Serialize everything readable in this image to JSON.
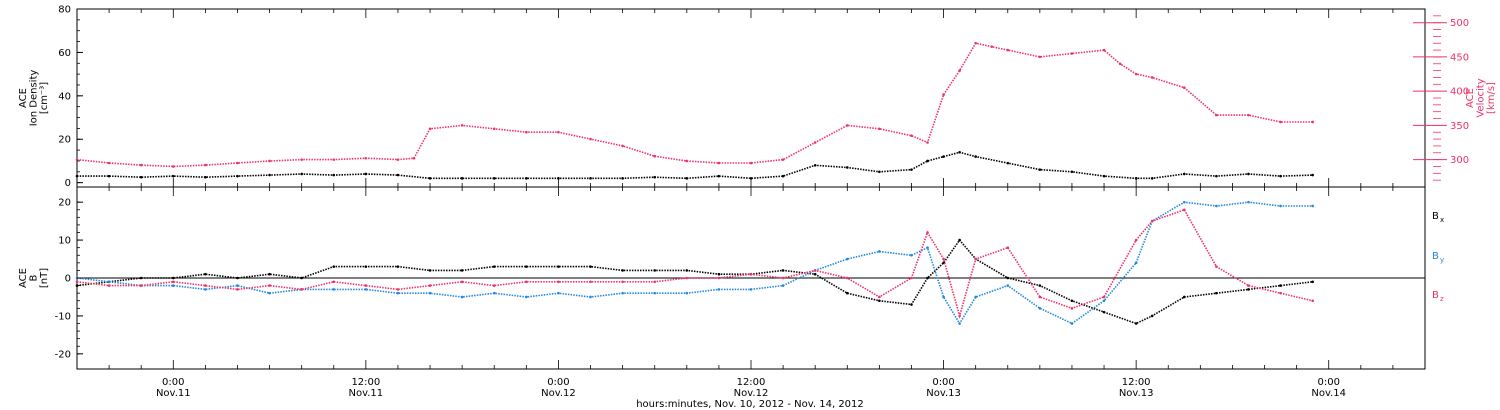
{
  "colors": {
    "black": "#000000",
    "density": "#000000",
    "velocity": "#ee3366",
    "bx": "#000000",
    "by": "#2288dd",
    "bz": "#ee3366"
  },
  "x_axis": {
    "title": "hours:minutes, Nov. 10, 2012 - Nov. 14, 2012",
    "xlim": [
      -6,
      78
    ],
    "ticks": [
      {
        "x": 0,
        "time": "0:00",
        "date": "Nov.11"
      },
      {
        "x": 12,
        "time": "12:00",
        "date": "Nov.11"
      },
      {
        "x": 24,
        "time": "0:00",
        "date": "Nov.12"
      },
      {
        "x": 36,
        "time": "12:00",
        "date": "Nov.12"
      },
      {
        "x": 48,
        "time": "0:00",
        "date": "Nov.13"
      },
      {
        "x": 60,
        "time": "12:00",
        "date": "Nov.13"
      },
      {
        "x": 72,
        "time": "0:00",
        "date": "Nov.14"
      }
    ]
  },
  "panels": {
    "top": {
      "left_label": [
        "ACE",
        "Ion Density",
        "[cm⁻³]"
      ],
      "right_label": [
        "ACE",
        "Velocity",
        "[km/s]"
      ],
      "left_ticks": [
        "0",
        "20",
        "40",
        "60",
        "80"
      ],
      "right_ticks": [
        "300",
        "350",
        "400",
        "450",
        "500"
      ]
    },
    "bottom": {
      "left_label": [
        "ACE",
        "B",
        "[nT]"
      ],
      "left_ticks": [
        "-20",
        "-10",
        "0",
        "10",
        "20"
      ],
      "legend": [
        {
          "main": "B",
          "sub": "x",
          "color": "#000000"
        },
        {
          "main": "B",
          "sub": "y",
          "color": "#2288dd"
        },
        {
          "main": "B",
          "sub": "z",
          "color": "#ee3366"
        }
      ]
    }
  },
  "chart_data": [
    {
      "type": "scatter",
      "title": "",
      "xlabel": "hours:minutes, Nov. 10, 2012 - Nov. 14, 2012",
      "x_units": "hours from 0:00 Nov.11, 2012",
      "ylabel": "ACE Ion Density [cm⁻³]",
      "ylim": [
        -2,
        80
      ],
      "y2label": "ACE Velocity [km/s]",
      "y2lim": [
        260,
        520
      ],
      "series": [
        {
          "name": "Ion Density",
          "axis": "left",
          "x": [
            -6,
            -4,
            -2,
            0,
            2,
            4,
            6,
            8,
            10,
            12,
            14,
            16,
            18,
            20,
            22,
            24,
            26,
            28,
            30,
            32,
            34,
            36,
            38,
            40,
            42,
            44,
            46,
            47,
            48,
            49,
            50,
            52,
            54,
            56,
            58,
            60,
            61,
            63,
            65,
            67,
            69,
            71
          ],
          "values": [
            3,
            3,
            2.5,
            3,
            2.5,
            3,
            3.5,
            4,
            3.5,
            4,
            3.5,
            2,
            2,
            2,
            2,
            2,
            2,
            2,
            2.5,
            2,
            3,
            2,
            3,
            8,
            7,
            5,
            6,
            10,
            12,
            14,
            12,
            9,
            6,
            5,
            3,
            2,
            2,
            4,
            3,
            4,
            3,
            3.5
          ]
        },
        {
          "name": "Velocity",
          "axis": "right",
          "x": [
            -6,
            -4,
            -2,
            0,
            2,
            4,
            6,
            8,
            10,
            12,
            14,
            15,
            16,
            18,
            20,
            22,
            24,
            26,
            28,
            30,
            32,
            34,
            36,
            38,
            40,
            42,
            44,
            46,
            47,
            48,
            49,
            50,
            51,
            52,
            54,
            56,
            58,
            59,
            60,
            61,
            63,
            65,
            67,
            69,
            71
          ],
          "values": [
            300,
            295,
            292,
            290,
            292,
            295,
            298,
            300,
            300,
            302,
            300,
            302,
            345,
            350,
            345,
            340,
            340,
            330,
            320,
            305,
            298,
            295,
            295,
            300,
            325,
            350,
            345,
            335,
            325,
            395,
            430,
            470,
            465,
            460,
            450,
            455,
            460,
            440,
            425,
            420,
            405,
            365,
            365,
            355,
            355
          ]
        }
      ]
    },
    {
      "type": "scatter",
      "title": "",
      "xlabel": "hours:minutes, Nov. 10, 2012 - Nov. 14, 2012",
      "x_units": "hours from 0:00 Nov.11, 2012",
      "ylabel": "ACE B [nT]",
      "ylim": [
        -24,
        24
      ],
      "series": [
        {
          "name": "Bx",
          "x": [
            -6,
            -4,
            -2,
            0,
            2,
            4,
            6,
            8,
            10,
            12,
            14,
            16,
            18,
            20,
            22,
            24,
            26,
            28,
            30,
            32,
            34,
            36,
            38,
            40,
            42,
            44,
            46,
            47,
            48,
            49,
            50,
            52,
            54,
            56,
            58,
            60,
            61,
            63,
            65,
            67,
            69,
            71
          ],
          "values": [
            -2,
            -1,
            0,
            0,
            1,
            0,
            1,
            0,
            3,
            3,
            3,
            2,
            2,
            3,
            3,
            3,
            3,
            2,
            2,
            2,
            1,
            1,
            2,
            1,
            -4,
            -6,
            -7,
            0,
            4,
            10,
            5,
            0,
            -2,
            -6,
            -9,
            -12,
            -10,
            -5,
            -4,
            -3,
            -2,
            -1
          ]
        },
        {
          "name": "By",
          "x": [
            -6,
            -4,
            -2,
            0,
            2,
            4,
            6,
            8,
            10,
            12,
            14,
            16,
            18,
            20,
            22,
            24,
            26,
            28,
            30,
            32,
            34,
            36,
            38,
            40,
            42,
            44,
            46,
            47,
            48,
            49,
            50,
            52,
            54,
            56,
            58,
            60,
            61,
            63,
            65,
            67,
            69,
            71
          ],
          "values": [
            0,
            -1,
            -2,
            -2,
            -3,
            -2,
            -4,
            -3,
            -3,
            -3,
            -4,
            -4,
            -5,
            -4,
            -5,
            -4,
            -5,
            -4,
            -4,
            -4,
            -3,
            -3,
            -2,
            2,
            5,
            7,
            6,
            8,
            -5,
            -12,
            -5,
            -2,
            -8,
            -12,
            -6,
            4,
            15,
            20,
            19,
            20,
            19,
            19
          ]
        },
        {
          "name": "Bz",
          "x": [
            -6,
            -4,
            -2,
            0,
            2,
            4,
            6,
            8,
            10,
            12,
            14,
            16,
            18,
            20,
            22,
            24,
            26,
            28,
            30,
            32,
            34,
            36,
            38,
            40,
            42,
            44,
            46,
            47,
            48,
            49,
            50,
            52,
            54,
            56,
            58,
            60,
            61,
            63,
            65,
            67,
            69,
            71
          ],
          "values": [
            -1,
            -2,
            -2,
            -1,
            -2,
            -3,
            -2,
            -3,
            -1,
            -2,
            -3,
            -2,
            -1,
            -2,
            -1,
            -1,
            -1,
            -1,
            -1,
            0,
            0,
            1,
            0,
            2,
            0,
            -5,
            0,
            12,
            5,
            -10,
            5,
            8,
            -5,
            -8,
            -5,
            10,
            15,
            18,
            3,
            -2,
            -4,
            -6
          ]
        }
      ]
    }
  ]
}
